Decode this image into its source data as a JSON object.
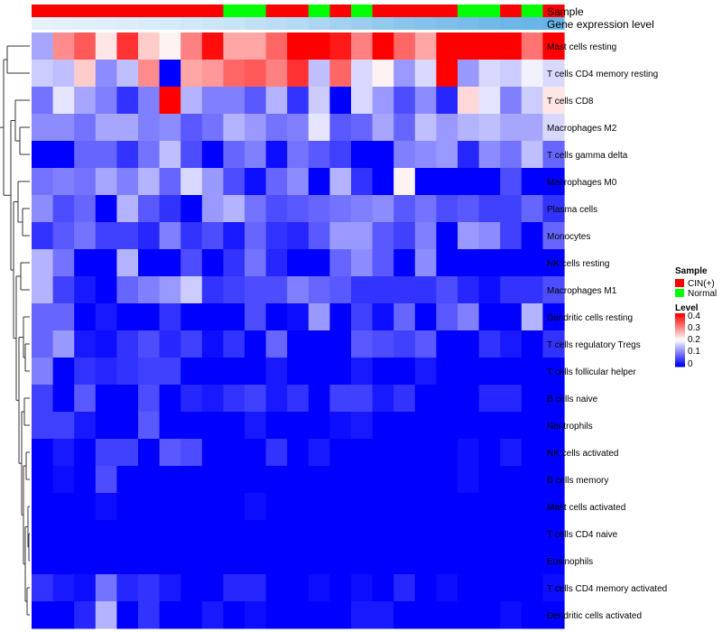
{
  "chart_data": {
    "type": "heatmap",
    "title": "",
    "annotation_tracks": [
      {
        "name": "Sample",
        "label": "Sample"
      },
      {
        "name": "Gene expression level",
        "label": "Gene expression level"
      }
    ],
    "sample_groups": [
      "CIN(+)",
      "CIN(+)",
      "CIN(+)",
      "CIN(+)",
      "CIN(+)",
      "CIN(+)",
      "CIN(+)",
      "CIN(+)",
      "CIN(+)",
      "Normal",
      "Normal",
      "CIN(+)",
      "CIN(+)",
      "Normal",
      "CIN(+)",
      "Normal",
      "CIN(+)",
      "CIN(+)",
      "CIN(+)",
      "CIN(+)",
      "Normal",
      "Normal",
      "CIN(+)",
      "Normal",
      "CIN(+)"
    ],
    "expression_track_colors": [
      "#e6f2fa",
      "#e4f1fa",
      "#e2f0fa",
      "#dfeffa",
      "#ddeef9",
      "#daecf9",
      "#d6eaf8",
      "#d2e8f8",
      "#cde6f7",
      "#c8e3f6",
      "#c2e0f5",
      "#bbdcf4",
      "#b4d9f3",
      "#acd5f2",
      "#a4d1f0",
      "#9ccdef",
      "#94c9ee",
      "#8cc5ec",
      "#85c2eb",
      "#7ebfea",
      "#78bce9",
      "#72b9e8",
      "#6db7e8",
      "#69b5e7",
      "#66b3e6"
    ],
    "rows": [
      "Mast cells resting",
      "T cells CD4 memory resting",
      "T cells CD8",
      "Macrophages M2",
      "T cells gamma delta",
      "Macrophages M0",
      "Plasma cells",
      "Monocytes",
      "NK cells resting",
      "Macrophages M1",
      "Dendritic cells resting",
      "T cells regulatory  Tregs",
      "T cells follicular helper",
      "B cells naive",
      "Neutrophils",
      "NK cells activated",
      "B cells memory",
      "Mast cells activated",
      "T cells CD4 naive",
      "Eosinophils",
      "T cells CD4 memory activated",
      "Dendritic cells activated"
    ],
    "values": [
      [
        0.13,
        0.29,
        0.33,
        0.22,
        0.36,
        0.24,
        0.21,
        0.3,
        0.39,
        0.27,
        0.27,
        0.32,
        0.4,
        0.4,
        0.38,
        0.3,
        0.4,
        0.32,
        0.27,
        0.4,
        0.4,
        0.4,
        0.4,
        0.31,
        0.4
      ],
      [
        0.16,
        0.15,
        0.24,
        0.11,
        0.15,
        0.29,
        0.0,
        0.27,
        0.28,
        0.32,
        0.33,
        0.3,
        0.36,
        0.15,
        0.32,
        0.17,
        0.21,
        0.12,
        0.17,
        0.4,
        0.12,
        0.17,
        0.16,
        0.19,
        0.17
      ],
      [
        0.09,
        0.18,
        0.13,
        0.1,
        0.04,
        0.1,
        0.4,
        0.14,
        0.1,
        0.1,
        0.07,
        0.14,
        0.04,
        0.16,
        0.0,
        0.17,
        0.12,
        0.06,
        0.11,
        0.03,
        0.23,
        0.18,
        0.1,
        0.16,
        0.22
      ],
      [
        0.11,
        0.11,
        0.09,
        0.13,
        0.13,
        0.1,
        0.11,
        0.07,
        0.09,
        0.14,
        0.12,
        0.09,
        0.1,
        0.18,
        0.07,
        0.08,
        0.13,
        0.08,
        0.15,
        0.12,
        0.14,
        0.15,
        0.13,
        0.13,
        0.17
      ],
      [
        0.0,
        0.0,
        0.08,
        0.08,
        0.04,
        0.09,
        0.15,
        0.06,
        0.0,
        0.08,
        0.1,
        0.01,
        0.09,
        0.07,
        0.05,
        0.0,
        0.0,
        0.1,
        0.11,
        0.12,
        0.03,
        0.11,
        0.09,
        0.15,
        0.08
      ],
      [
        0.09,
        0.1,
        0.09,
        0.13,
        0.1,
        0.14,
        0.08,
        0.17,
        0.12,
        0.06,
        0.01,
        0.08,
        0.11,
        0.0,
        0.14,
        0.04,
        0.0,
        0.21,
        0.0,
        0.0,
        0.0,
        0.0,
        0.06,
        0.0,
        0.0
      ],
      [
        0.11,
        0.06,
        0.08,
        0.0,
        0.14,
        0.07,
        0.04,
        0.0,
        0.12,
        0.14,
        0.09,
        0.06,
        0.07,
        0.08,
        0.09,
        0.1,
        0.11,
        0.07,
        0.09,
        0.06,
        0.07,
        0.05,
        0.05,
        0.08,
        0.04
      ],
      [
        0.04,
        0.07,
        0.09,
        0.05,
        0.05,
        0.03,
        0.1,
        0.04,
        0.06,
        0.02,
        0.08,
        0.04,
        0.03,
        0.07,
        0.12,
        0.12,
        0.07,
        0.05,
        0.1,
        0.0,
        0.12,
        0.11,
        0.05,
        0.0,
        0.08
      ],
      [
        0.14,
        0.09,
        0.0,
        0.0,
        0.14,
        0.0,
        0.0,
        0.06,
        0.0,
        0.04,
        0.09,
        0.03,
        0.0,
        0.0,
        0.08,
        0.11,
        0.07,
        0.0,
        0.11,
        0.0,
        0.0,
        0.0,
        0.0,
        0.0,
        0.0
      ],
      [
        0.14,
        0.05,
        0.02,
        0.0,
        0.08,
        0.1,
        0.12,
        0.16,
        0.04,
        0.05,
        0.06,
        0.06,
        0.1,
        0.08,
        0.07,
        0.04,
        0.04,
        0.04,
        0.04,
        0.06,
        0.03,
        0.01,
        0.04,
        0.04,
        0.06
      ],
      [
        0.08,
        0.08,
        0.0,
        0.02,
        0.0,
        0.0,
        0.04,
        0.0,
        0.0,
        0.0,
        0.06,
        0.0,
        0.01,
        0.12,
        0.0,
        0.05,
        0.01,
        0.08,
        0.0,
        0.07,
        0.1,
        0.0,
        0.0,
        0.14,
        0.0
      ],
      [
        0.08,
        0.12,
        0.02,
        0.01,
        0.04,
        0.06,
        0.03,
        0.05,
        0.01,
        0.04,
        0.0,
        0.08,
        0.0,
        0.0,
        0.0,
        0.07,
        0.06,
        0.05,
        0.07,
        0.0,
        0.0,
        0.04,
        0.02,
        0.0,
        0.04
      ],
      [
        0.1,
        0.0,
        0.04,
        0.03,
        0.04,
        0.05,
        0.05,
        0.0,
        0.0,
        0.0,
        0.0,
        0.02,
        0.0,
        0.0,
        0.0,
        0.02,
        0.0,
        0.0,
        0.02,
        0.0,
        0.0,
        0.0,
        0.0,
        0.0,
        0.0
      ],
      [
        0.05,
        0.0,
        0.07,
        0.0,
        0.0,
        0.06,
        0.0,
        0.03,
        0.02,
        0.04,
        0.05,
        0.02,
        0.04,
        0.0,
        0.05,
        0.05,
        0.02,
        0.04,
        0.0,
        0.0,
        0.0,
        0.03,
        0.03,
        0.0,
        0.0
      ],
      [
        0.05,
        0.05,
        0.02,
        0.0,
        0.0,
        0.07,
        0.0,
        0.0,
        0.0,
        0.0,
        0.02,
        0.0,
        0.0,
        0.0,
        0.01,
        0.02,
        0.0,
        0.0,
        0.0,
        0.0,
        0.0,
        0.0,
        0.0,
        0.0,
        0.0
      ],
      [
        0.0,
        0.02,
        0.0,
        0.05,
        0.05,
        0.0,
        0.07,
        0.06,
        0.0,
        0.0,
        0.0,
        0.04,
        0.0,
        0.02,
        0.0,
        0.0,
        0.0,
        0.0,
        0.0,
        0.0,
        0.01,
        0.0,
        0.02,
        0.0,
        0.0
      ],
      [
        0.0,
        0.01,
        0.0,
        0.06,
        0.0,
        0.0,
        0.0,
        0.0,
        0.0,
        0.0,
        0.0,
        0.0,
        0.0,
        0.0,
        0.0,
        0.0,
        0.0,
        0.0,
        0.0,
        0.0,
        0.01,
        0.0,
        0.0,
        0.0,
        0.0
      ],
      [
        0.0,
        0.0,
        0.0,
        0.01,
        0.0,
        0.0,
        0.0,
        0.0,
        0.0,
        0.0,
        0.01,
        0.0,
        0.0,
        0.0,
        0.0,
        0.0,
        0.0,
        0.0,
        0.0,
        0.0,
        0.0,
        0.0,
        0.0,
        0.0,
        0.0
      ],
      [
        0.0,
        0.0,
        0.0,
        0.0,
        0.0,
        0.0,
        0.0,
        0.0,
        0.0,
        0.0,
        0.0,
        0.0,
        0.0,
        0.0,
        0.0,
        0.0,
        0.0,
        0.0,
        0.0,
        0.0,
        0.0,
        0.0,
        0.0,
        0.0,
        0.0
      ],
      [
        0.0,
        0.0,
        0.0,
        0.0,
        0.0,
        0.0,
        0.0,
        0.0,
        0.0,
        0.0,
        0.0,
        0.0,
        0.0,
        0.0,
        0.0,
        0.0,
        0.0,
        0.0,
        0.0,
        0.0,
        0.0,
        0.0,
        0.0,
        0.0,
        0.0
      ],
      [
        0.04,
        0.02,
        0.01,
        0.09,
        0.03,
        0.04,
        0.02,
        0.0,
        0.0,
        0.03,
        0.03,
        0.0,
        0.0,
        0.01,
        0.0,
        0.01,
        0.0,
        0.03,
        0.0,
        0.01,
        0.0,
        0.0,
        0.0,
        0.0,
        0.01
      ],
      [
        0.0,
        0.0,
        0.03,
        0.14,
        0.0,
        0.04,
        0.0,
        0.0,
        0.02,
        0.0,
        0.01,
        0.0,
        0.0,
        0.0,
        0.0,
        0.02,
        0.02,
        0.0,
        0.0,
        0.0,
        0.0,
        0.0,
        0.01,
        0.0,
        0.0
      ]
    ],
    "color_scale": {
      "min": 0,
      "mid": 0.2,
      "max": 0.4,
      "low": "#0000ff",
      "midColor": "#ffffff",
      "high": "#ff0000"
    },
    "legend": {
      "sample_title": "Sample",
      "groups": [
        {
          "name": "CIN(+)",
          "color": "#ff0000"
        },
        {
          "name": "Normal",
          "color": "#00ff00"
        }
      ],
      "level_title": "Level",
      "level_ticks": [
        "0.4",
        "0.3",
        "0.2",
        "0.1",
        "0"
      ],
      "placement": "right"
    },
    "dendrogram": {
      "side": "left",
      "orientation": "rows"
    }
  }
}
